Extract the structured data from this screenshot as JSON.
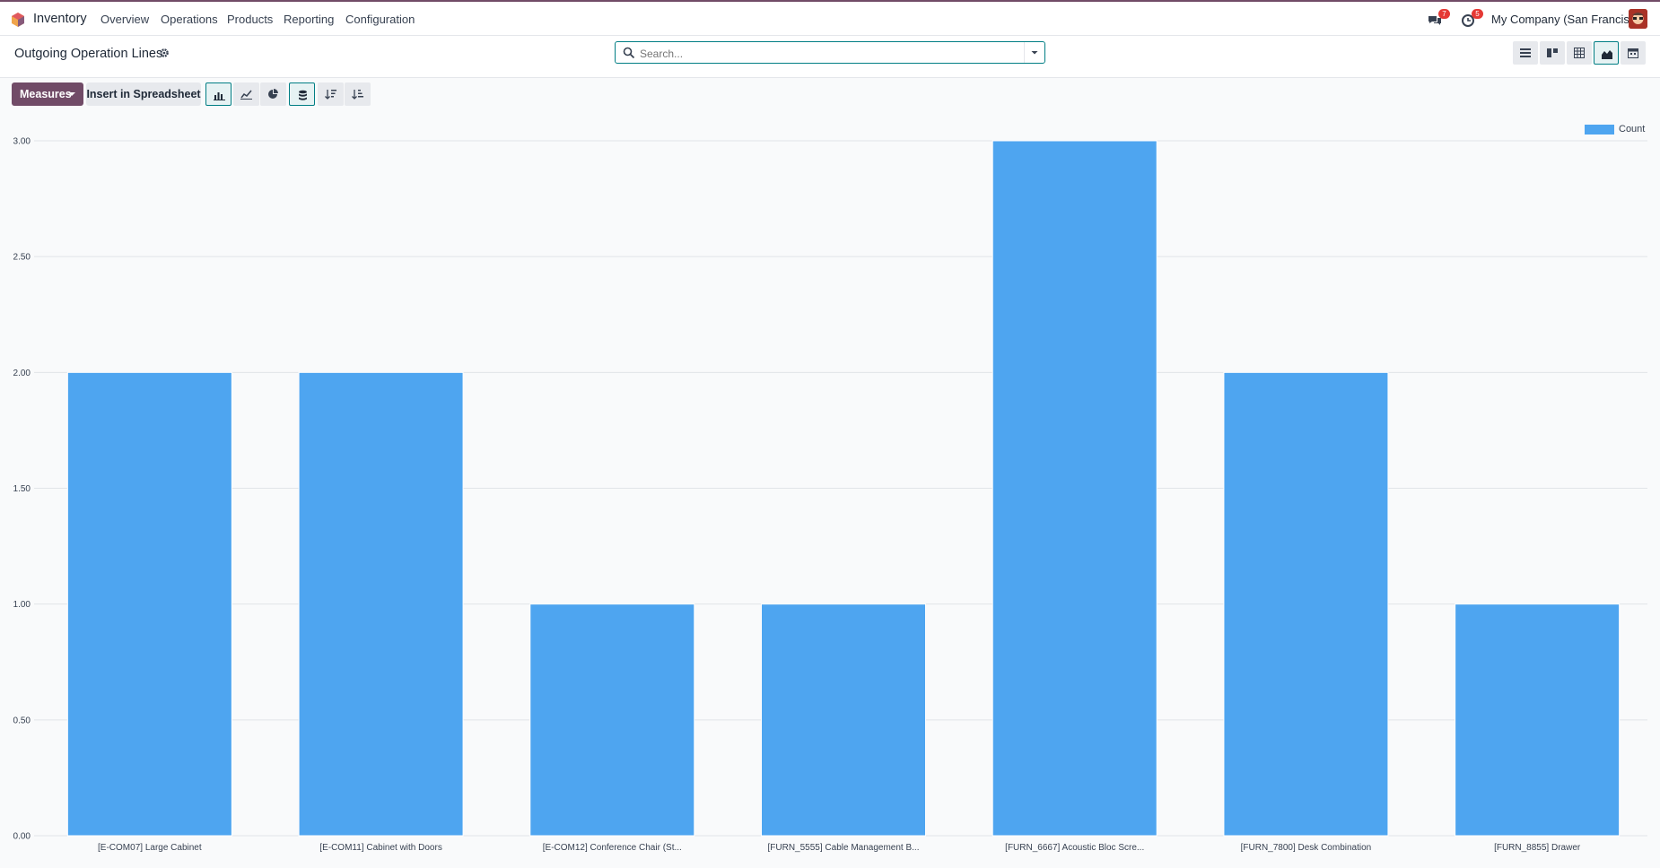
{
  "topbar": {
    "app_name": "Inventory",
    "menu": [
      "Overview",
      "Operations",
      "Products",
      "Reporting",
      "Configuration"
    ],
    "messages_badge": "7",
    "activities_badge": "5",
    "company": "My Company (San Francisco)"
  },
  "controls": {
    "title": "Outgoing Operation Lines",
    "search_placeholder": "Search...",
    "measures_label": "Measures",
    "spreadsheet_label": "Insert in Spreadsheet",
    "views": [
      "list-view-icon",
      "kanban-view-icon",
      "pivot-view-icon",
      "graph-view-icon",
      "calendar-view-icon"
    ],
    "active_view": "graph-view-icon"
  },
  "colors": {
    "accent": "#714b67",
    "teal": "#017e84",
    "bar": "#4ea5f0"
  },
  "chart_data": {
    "type": "bar",
    "categories": [
      "[E-COM07] Large Cabinet",
      "[E-COM11] Cabinet with Doors",
      "[E-COM12] Conference Chair (St...",
      "[FURN_5555] Cable Management B...",
      "[FURN_6667] Acoustic Bloc Scre...",
      "[FURN_7800] Desk Combination",
      "[FURN_8855] Drawer"
    ],
    "series": [
      {
        "name": "Count",
        "values": [
          2,
          2,
          1,
          1,
          3,
          2,
          1
        ]
      }
    ],
    "yticks": [
      "0.00",
      "0.50",
      "1.00",
      "1.50",
      "2.00",
      "2.50",
      "3.00"
    ],
    "ylim": [
      0,
      3
    ],
    "grid": true,
    "legend": "top-right"
  }
}
